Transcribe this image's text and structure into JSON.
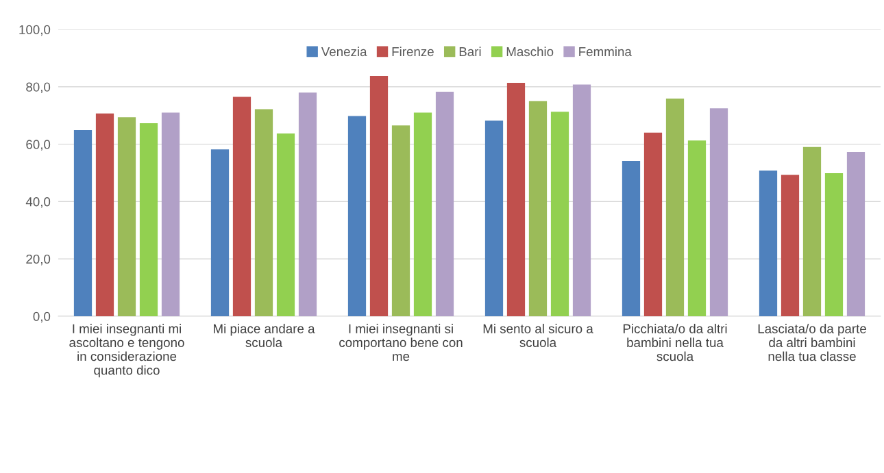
{
  "chart_data": {
    "type": "bar",
    "categories": [
      "I miei insegnanti mi ascoltano e tengono in considerazione quanto dico",
      "Mi piace andare a scuola",
      "I miei insegnanti si comportano bene con me",
      "Mi sento al sicuro a scuola",
      "Picchiata/o da altri bambini nella tua scuola",
      "Lasciata/o da parte da altri bambini nella tua classe"
    ],
    "series": [
      {
        "name": "Venezia",
        "color": "#4f81bd",
        "values": [
          64.9,
          58.2,
          69.8,
          68.2,
          54.2,
          50.8
        ]
      },
      {
        "name": "Firenze",
        "color": "#c0504d",
        "values": [
          70.7,
          76.5,
          83.8,
          81.4,
          64.0,
          49.3
        ]
      },
      {
        "name": "Bari",
        "color": "#9bbb59",
        "values": [
          69.4,
          72.2,
          66.5,
          75.0,
          75.9,
          59.0
        ]
      },
      {
        "name": "Maschio",
        "color": "#92d050",
        "values": [
          67.3,
          63.7,
          71.0,
          71.3,
          61.3,
          49.9
        ]
      },
      {
        "name": "Femmina",
        "color": "#b1a0c7",
        "values": [
          71.0,
          78.0,
          78.3,
          80.8,
          72.5,
          57.3
        ]
      }
    ],
    "ylim": [
      0,
      100
    ],
    "yticks": [
      {
        "value": 0,
        "label": "0,0"
      },
      {
        "value": 20,
        "label": "20,0"
      },
      {
        "value": 40,
        "label": "40,0"
      },
      {
        "value": 60,
        "label": "60,0"
      },
      {
        "value": 80,
        "label": "80,0"
      },
      {
        "value": 100,
        "label": "100,0"
      }
    ],
    "grid": "y",
    "legend": "top"
  }
}
